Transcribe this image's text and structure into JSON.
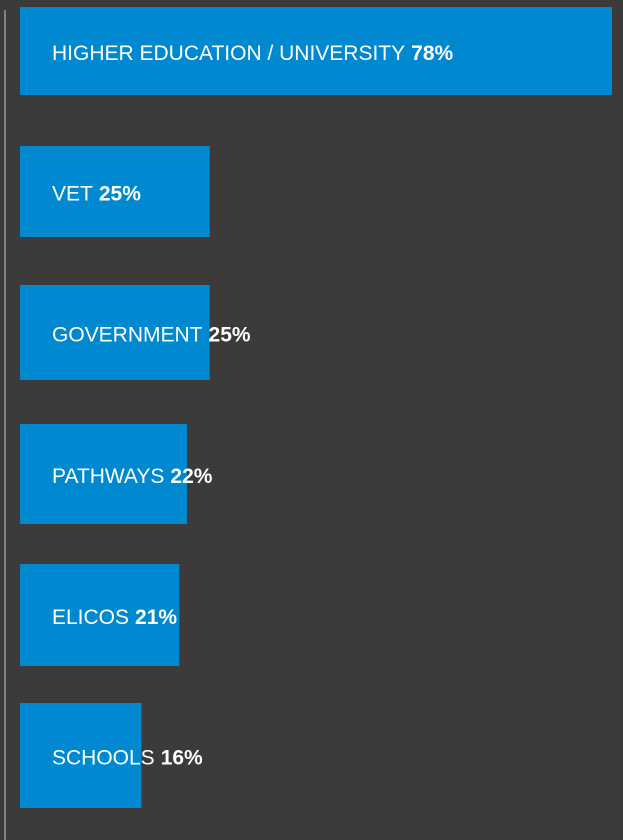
{
  "chart_data": {
    "type": "bar",
    "orientation": "horizontal",
    "color": "#0088d1",
    "categories": [
      "HIGHER EDUCATION / UNIVERSITY",
      "VET",
      "GOVERNMENT",
      "PATHWAYS",
      "ELICOS",
      "SCHOOLS"
    ],
    "values": [
      78,
      25,
      25,
      22,
      21,
      16
    ],
    "value_labels": [
      "78%",
      "25%",
      "25%",
      "22%",
      "21%",
      "16%"
    ]
  }
}
